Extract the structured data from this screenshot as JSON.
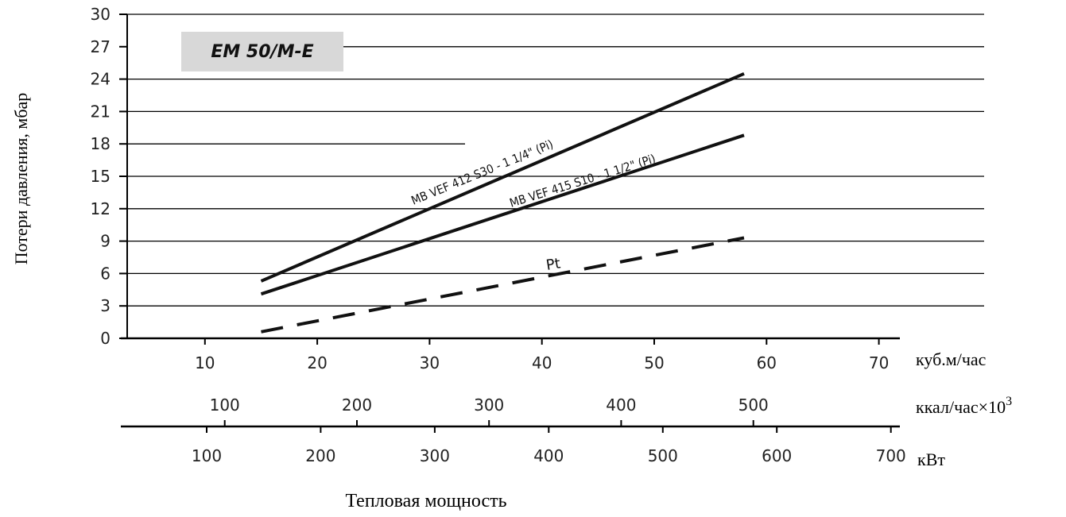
{
  "chart_data": {
    "type": "line",
    "title": "EM 50/M-E",
    "ylabel": "Потери давления, мбар",
    "xlabel": "Тепловая мощность",
    "ylim": [
      0,
      30
    ],
    "yticks": [
      0,
      3,
      6,
      9,
      12,
      15,
      18,
      21,
      24,
      27,
      30
    ],
    "xlim": [
      3,
      72
    ],
    "xaxes": [
      {
        "unit": "куб.м/час",
        "ticks": [
          10,
          20,
          30,
          40,
          50,
          60,
          70
        ]
      },
      {
        "unit": "ккал/час×10",
        "unit_sup": "3",
        "ticks": [
          100,
          200,
          300,
          400,
          500
        ]
      },
      {
        "unit": "кВт",
        "ticks": [
          100,
          200,
          300,
          400,
          500,
          600,
          700
        ]
      }
    ],
    "grid": true,
    "series": [
      {
        "name": "MB VEF 412 S30 - 1 1/4\" (Pi)",
        "style": "solid",
        "x": [
          15,
          58
        ],
        "y": [
          5.3,
          24.5
        ]
      },
      {
        "name": "MB VEF 415 S10 - 1 1/2\" (Pi)",
        "style": "solid",
        "x": [
          15,
          58
        ],
        "y": [
          4.1,
          18.8
        ]
      },
      {
        "name": "Pt",
        "style": "dashed",
        "x": [
          15,
          58
        ],
        "y": [
          0.6,
          9.3
        ]
      }
    ]
  }
}
